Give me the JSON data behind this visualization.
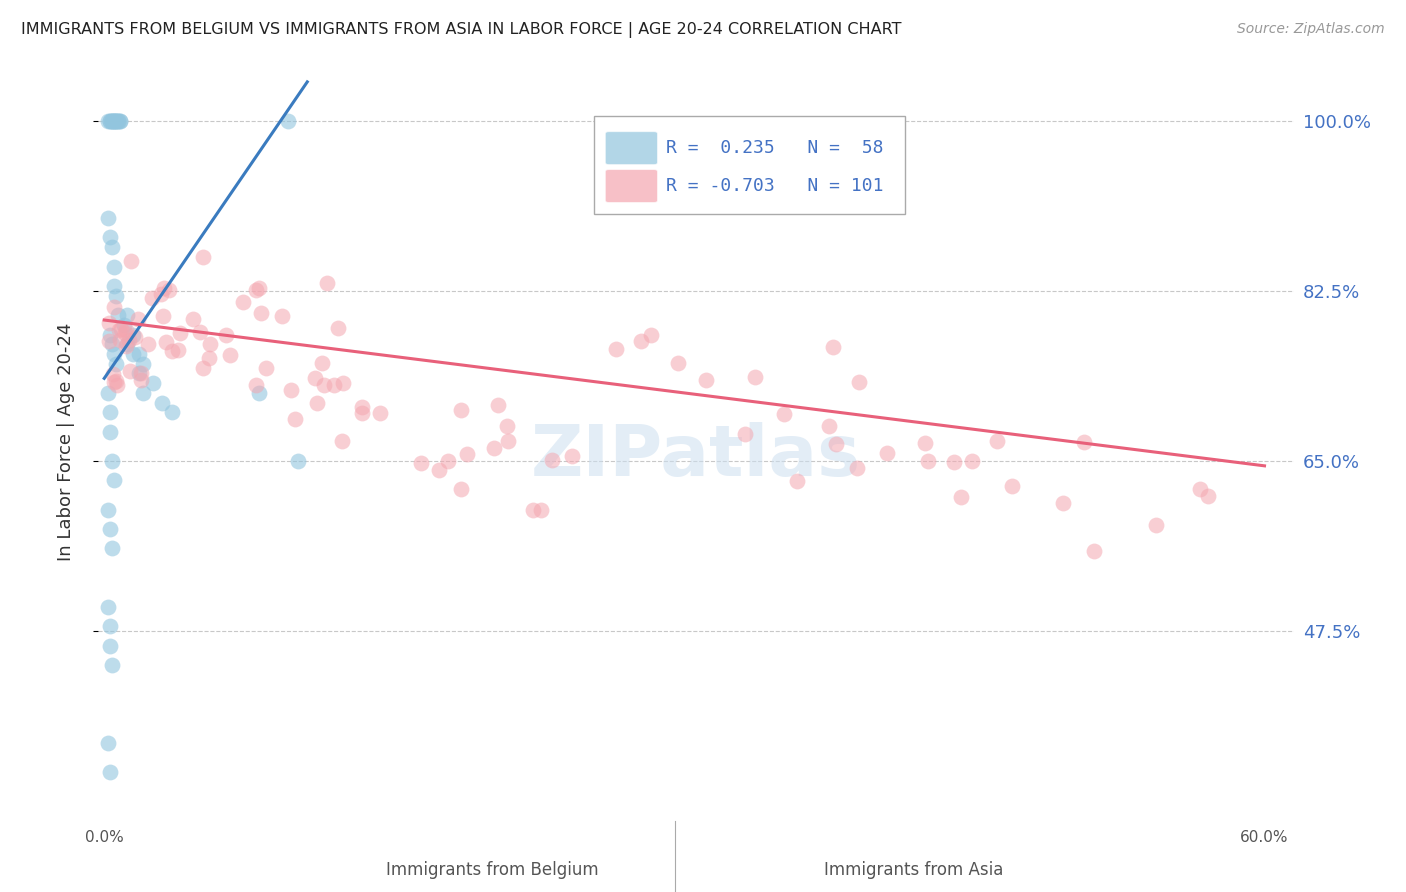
{
  "title": "IMMIGRANTS FROM BELGIUM VS IMMIGRANTS FROM ASIA IN LABOR FORCE | AGE 20-24 CORRELATION CHART",
  "source": "Source: ZipAtlas.com",
  "ylabel": "In Labor Force | Age 20-24",
  "xlabel_belgium": "Immigrants from Belgium",
  "xlabel_asia": "Immigrants from Asia",
  "xlim": [
    -0.003,
    0.615
  ],
  "ylim": [
    0.28,
    1.06
  ],
  "yticks": [
    0.475,
    0.65,
    0.825,
    1.0
  ],
  "ytick_labels": [
    "47.5%",
    "65.0%",
    "82.5%",
    "100.0%"
  ],
  "legend": {
    "belgium_R": "0.235",
    "belgium_N": "58",
    "asia_R": "-0.703",
    "asia_N": "101"
  },
  "belgium_color": "#92c5de",
  "asia_color": "#f4a6b0",
  "belgium_line_color": "#3a7bbf",
  "asia_line_color": "#e8607a",
  "watermark": "ZIPatlas"
}
